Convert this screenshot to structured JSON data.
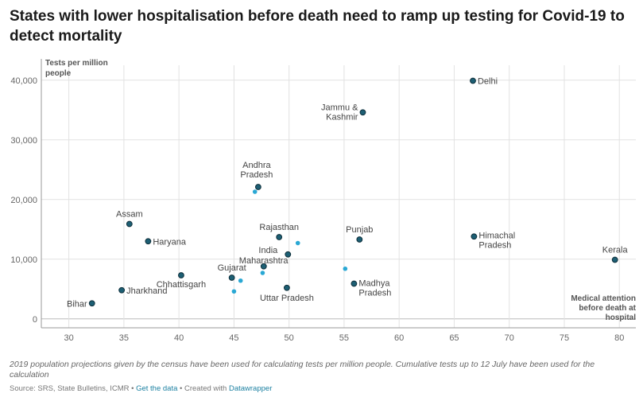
{
  "title": "States with lower hospitalisation before death need to ramp up testing for Covid-19 to detect mortality",
  "notes": "2019 population projections given by the census have been used for calculating tests per million people. Cumulative tests up to 12 July have been used for the calculation",
  "source": {
    "prefix": "Source: SRS, State Bulletins, ICMR • ",
    "get_data": "Get the data",
    "middle": " • Created with ",
    "datawrapper": "Datawrapper"
  },
  "colors": {
    "dark_point": "#1d5f74",
    "light_point": "#2aa8d4",
    "stroke": "#0d2e3a",
    "grid": "#e2e2e2"
  },
  "chart_data": {
    "type": "scatter",
    "title": "States with lower hospitalisation before death need to ramp up testing for Covid-19 to detect mortality",
    "xlabel": "Medical attention before death at hospital",
    "ylabel": "Tests per million people",
    "xlim": [
      27.5,
      81.5
    ],
    "ylim": [
      -1500,
      42500
    ],
    "x_ticks": [
      30,
      35,
      40,
      45,
      50,
      55,
      60,
      65,
      70,
      75,
      80
    ],
    "y_ticks": [
      0,
      10000,
      20000,
      30000,
      40000
    ],
    "y_tick_labels": [
      "0",
      "10,000",
      "20,000",
      "30,000",
      "40,000"
    ],
    "grid": true,
    "points": [
      {
        "label": "Delhi",
        "x": 66.7,
        "y": 39900,
        "kind": "dark"
      },
      {
        "label": "Jammu & Kashmir",
        "x": 56.7,
        "y": 34600,
        "kind": "dark"
      },
      {
        "label": "Andhra Pradesh",
        "x": 47.2,
        "y": 22100,
        "kind": "dark"
      },
      {
        "label": "Assam",
        "x": 35.5,
        "y": 15900,
        "kind": "dark"
      },
      {
        "label": "Haryana",
        "x": 37.2,
        "y": 13000,
        "kind": "dark"
      },
      {
        "label": "Rajasthan",
        "x": 49.1,
        "y": 13700,
        "kind": "dark"
      },
      {
        "label": "Punjab",
        "x": 56.4,
        "y": 13300,
        "kind": "dark"
      },
      {
        "label": "Himachal Pradesh",
        "x": 66.8,
        "y": 13800,
        "kind": "dark"
      },
      {
        "label": "Kerala",
        "x": 79.6,
        "y": 9900,
        "kind": "dark"
      },
      {
        "label": "India",
        "x": 49.9,
        "y": 10800,
        "kind": "dark"
      },
      {
        "label": "Maharashtra",
        "x": 47.7,
        "y": 8800,
        "kind": "dark"
      },
      {
        "label": "Gujarat",
        "x": 44.8,
        "y": 6900,
        "kind": "dark"
      },
      {
        "label": "Chhattisgarh",
        "x": 40.2,
        "y": 7300,
        "kind": "dark"
      },
      {
        "label": "Jharkhand",
        "x": 34.8,
        "y": 4800,
        "kind": "dark"
      },
      {
        "label": "Bihar",
        "x": 32.1,
        "y": 2600,
        "kind": "dark"
      },
      {
        "label": "Uttar Pradesh",
        "x": 49.8,
        "y": 5200,
        "kind": "dark"
      },
      {
        "label": "Madhya Pradesh",
        "x": 55.9,
        "y": 5900,
        "kind": "dark"
      },
      {
        "label": "",
        "x": 46.9,
        "y": 21300,
        "kind": "light"
      },
      {
        "label": "",
        "x": 50.8,
        "y": 12700,
        "kind": "light"
      },
      {
        "label": "",
        "x": 55.1,
        "y": 8400,
        "kind": "light"
      },
      {
        "label": "",
        "x": 45.6,
        "y": 6400,
        "kind": "light"
      },
      {
        "label": "",
        "x": 47.6,
        "y": 7700,
        "kind": "light"
      },
      {
        "label": "",
        "x": 45.0,
        "y": 4600,
        "kind": "light"
      }
    ]
  }
}
